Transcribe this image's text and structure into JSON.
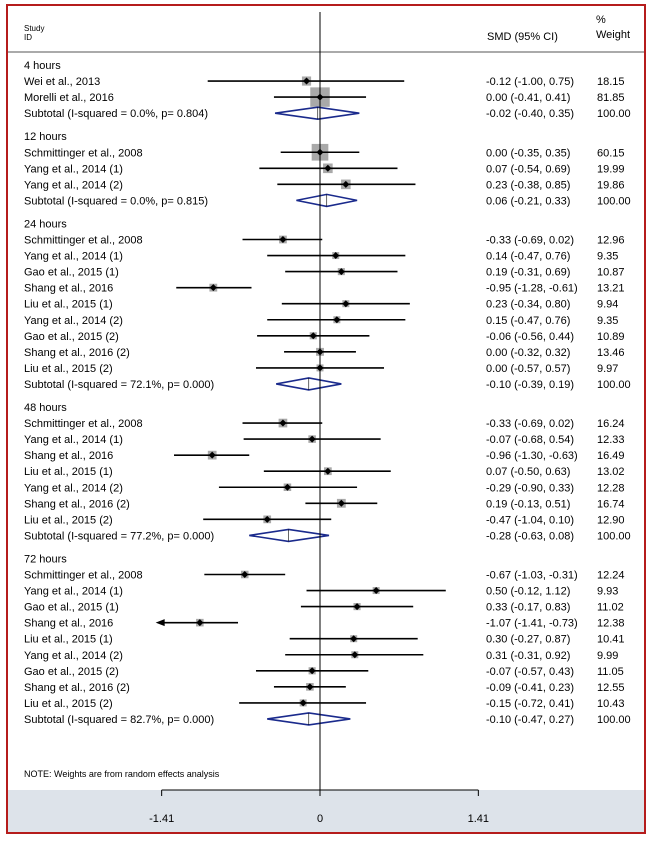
{
  "header": {
    "study_line1": "Study",
    "study_line2": "ID",
    "effect_label": "SMD (95% CI)",
    "weight_line1": "%",
    "weight_line2": "Weight"
  },
  "note": "NOTE: Weights are from random effects analysis",
  "colors": {
    "frame": "#b51c1c",
    "diamond": "#1a2a8c",
    "box": "#a9a9a9",
    "axis_band": "#dde3ea"
  },
  "chart_data": {
    "type": "forest",
    "x_ticks": [
      {
        "value": -1.41,
        "label": "-1.41"
      },
      {
        "value": 0,
        "label": "0"
      },
      {
        "value": 1.41,
        "label": "1.41"
      }
    ],
    "xlim": [
      -1.41,
      1.41
    ],
    "groups": [
      {
        "title": "4 hours",
        "studies": [
          {
            "label": "Wei et al., 2013",
            "smd": -0.12,
            "lo": -1.0,
            "hi": 0.75,
            "ci_text": "-0.12 (-1.00, 0.75)",
            "weight": 18.15,
            "weight_text": "18.15"
          },
          {
            "label": "Morelli et al., 2016",
            "smd": 0.0,
            "lo": -0.41,
            "hi": 0.41,
            "ci_text": "0.00 (-0.41, 0.41)",
            "weight": 81.85,
            "weight_text": "81.85"
          }
        ],
        "subtotal": {
          "label": "Subtotal (I-squared = 0.0%, p= 0.804)",
          "smd": -0.02,
          "lo": -0.4,
          "hi": 0.35,
          "ci_text": "-0.02 (-0.40, 0.35)",
          "weight_text": "100.00"
        }
      },
      {
        "title": "12 hours",
        "studies": [
          {
            "label": "Schmittinger et al., 2008",
            "smd": 0.0,
            "lo": -0.35,
            "hi": 0.35,
            "ci_text": "0.00 (-0.35, 0.35)",
            "weight": 60.15,
            "weight_text": "60.15"
          },
          {
            "label": "Yang et al., 2014 (1)",
            "smd": 0.07,
            "lo": -0.54,
            "hi": 0.69,
            "ci_text": "0.07 (-0.54, 0.69)",
            "weight": 19.99,
            "weight_text": "19.99"
          },
          {
            "label": "Yang et al., 2014 (2)",
            "smd": 0.23,
            "lo": -0.38,
            "hi": 0.85,
            "ci_text": "0.23 (-0.38, 0.85)",
            "weight": 19.86,
            "weight_text": "19.86"
          }
        ],
        "subtotal": {
          "label": "Subtotal (I-squared = 0.0%, p= 0.815)",
          "smd": 0.06,
          "lo": -0.21,
          "hi": 0.33,
          "ci_text": "0.06 (-0.21, 0.33)",
          "weight_text": "100.00"
        }
      },
      {
        "title": "24 hours",
        "studies": [
          {
            "label": "Schmittinger et al., 2008",
            "smd": -0.33,
            "lo": -0.69,
            "hi": 0.02,
            "ci_text": "-0.33 (-0.69, 0.02)",
            "weight": 12.96,
            "weight_text": "12.96"
          },
          {
            "label": "Yang et al., 2014 (1)",
            "smd": 0.14,
            "lo": -0.47,
            "hi": 0.76,
            "ci_text": "0.14 (-0.47, 0.76)",
            "weight": 9.35,
            "weight_text": "9.35"
          },
          {
            "label": "Gao et al., 2015 (1)",
            "smd": 0.19,
            "lo": -0.31,
            "hi": 0.69,
            "ci_text": "0.19 (-0.31, 0.69)",
            "weight": 10.87,
            "weight_text": "10.87"
          },
          {
            "label": "Shang et al., 2016",
            "smd": -0.95,
            "lo": -1.28,
            "hi": -0.61,
            "ci_text": "-0.95 (-1.28, -0.61)",
            "weight": 13.21,
            "weight_text": "13.21"
          },
          {
            "label": "Liu et al., 2015 (1)",
            "smd": 0.23,
            "lo": -0.34,
            "hi": 0.8,
            "ci_text": "0.23 (-0.34, 0.80)",
            "weight": 9.94,
            "weight_text": "9.94"
          },
          {
            "label": "Yang et al., 2014 (2)",
            "smd": 0.15,
            "lo": -0.47,
            "hi": 0.76,
            "ci_text": "0.15 (-0.47, 0.76)",
            "weight": 9.35,
            "weight_text": "9.35"
          },
          {
            "label": "Gao et al., 2015 (2)",
            "smd": -0.06,
            "lo": -0.56,
            "hi": 0.44,
            "ci_text": "-0.06 (-0.56, 0.44)",
            "weight": 10.89,
            "weight_text": "10.89"
          },
          {
            "label": "Shang et al., 2016 (2)",
            "smd": 0.0,
            "lo": -0.32,
            "hi": 0.32,
            "ci_text": "0.00 (-0.32, 0.32)",
            "weight": 13.46,
            "weight_text": "13.46"
          },
          {
            "label": "Liu et al., 2015 (2)",
            "smd": 0.0,
            "lo": -0.57,
            "hi": 0.57,
            "ci_text": "0.00 (-0.57, 0.57)",
            "weight": 9.97,
            "weight_text": "9.97"
          }
        ],
        "subtotal": {
          "label": "Subtotal (I-squared = 72.1%, p= 0.000)",
          "smd": -0.1,
          "lo": -0.39,
          "hi": 0.19,
          "ci_text": "-0.10 (-0.39, 0.19)",
          "weight_text": "100.00"
        }
      },
      {
        "title": "48 hours",
        "studies": [
          {
            "label": "Schmittinger et al., 2008",
            "smd": -0.33,
            "lo": -0.69,
            "hi": 0.02,
            "ci_text": "-0.33 (-0.69, 0.02)",
            "weight": 16.24,
            "weight_text": "16.24"
          },
          {
            "label": "Yang et al., 2014 (1)",
            "smd": -0.07,
            "lo": -0.68,
            "hi": 0.54,
            "ci_text": "-0.07 (-0.68, 0.54)",
            "weight": 12.33,
            "weight_text": "12.33"
          },
          {
            "label": "Shang et al., 2016",
            "smd": -0.96,
            "lo": -1.3,
            "hi": -0.63,
            "ci_text": "-0.96 (-1.30, -0.63)",
            "weight": 16.49,
            "weight_text": "16.49"
          },
          {
            "label": "Liu et al., 2015 (1)",
            "smd": 0.07,
            "lo": -0.5,
            "hi": 0.63,
            "ci_text": "0.07 (-0.50, 0.63)",
            "weight": 13.02,
            "weight_text": "13.02"
          },
          {
            "label": "Yang et al., 2014 (2)",
            "smd": -0.29,
            "lo": -0.9,
            "hi": 0.33,
            "ci_text": "-0.29 (-0.90, 0.33)",
            "weight": 12.28,
            "weight_text": "12.28"
          },
          {
            "label": "Shang et al., 2016 (2)",
            "smd": 0.19,
            "lo": -0.13,
            "hi": 0.51,
            "ci_text": "0.19 (-0.13, 0.51)",
            "weight": 16.74,
            "weight_text": "16.74"
          },
          {
            "label": "Liu et al., 2015 (2)",
            "smd": -0.47,
            "lo": -1.04,
            "hi": 0.1,
            "ci_text": "-0.47 (-1.04, 0.10)",
            "weight": 12.9,
            "weight_text": "12.90"
          }
        ],
        "subtotal": {
          "label": "Subtotal (I-squared = 77.2%, p= 0.000)",
          "smd": -0.28,
          "lo": -0.63,
          "hi": 0.08,
          "ci_text": "-0.28 (-0.63, 0.08)",
          "weight_text": "100.00"
        }
      },
      {
        "title": "72 hours",
        "studies": [
          {
            "label": "Schmittinger et al., 2008",
            "smd": -0.67,
            "lo": -1.03,
            "hi": -0.31,
            "ci_text": "-0.67 (-1.03, -0.31)",
            "weight": 12.24,
            "weight_text": "12.24"
          },
          {
            "label": "Yang et al., 2014 (1)",
            "smd": 0.5,
            "lo": -0.12,
            "hi": 1.12,
            "ci_text": "0.50 (-0.12, 1.12)",
            "weight": 9.93,
            "weight_text": "9.93"
          },
          {
            "label": "Gao et al., 2015 (1)",
            "smd": 0.33,
            "lo": -0.17,
            "hi": 0.83,
            "ci_text": "0.33 (-0.17, 0.83)",
            "weight": 11.02,
            "weight_text": "11.02"
          },
          {
            "label": "Shang et al., 2016",
            "smd": -1.07,
            "lo": -1.41,
            "hi": -0.73,
            "ci_text": "-1.07 (-1.41, -0.73)",
            "weight": 12.38,
            "weight_text": "12.38",
            "arrow_left": true
          },
          {
            "label": "Liu et al., 2015 (1)",
            "smd": 0.3,
            "lo": -0.27,
            "hi": 0.87,
            "ci_text": "0.30 (-0.27, 0.87)",
            "weight": 10.41,
            "weight_text": "10.41"
          },
          {
            "label": "Yang et al., 2014 (2)",
            "smd": 0.31,
            "lo": -0.31,
            "hi": 0.92,
            "ci_text": "0.31 (-0.31, 0.92)",
            "weight": 9.99,
            "weight_text": "9.99"
          },
          {
            "label": "Gao et al., 2015 (2)",
            "smd": -0.07,
            "lo": -0.57,
            "hi": 0.43,
            "ci_text": "-0.07 (-0.57, 0.43)",
            "weight": 11.05,
            "weight_text": "11.05"
          },
          {
            "label": "Shang et al., 2016 (2)",
            "smd": -0.09,
            "lo": -0.41,
            "hi": 0.23,
            "ci_text": "-0.09 (-0.41, 0.23)",
            "weight": 12.55,
            "weight_text": "12.55"
          },
          {
            "label": "Liu et al., 2015 (2)",
            "smd": -0.15,
            "lo": -0.72,
            "hi": 0.41,
            "ci_text": "-0.15 (-0.72, 0.41)",
            "weight": 10.43,
            "weight_text": "10.43"
          }
        ],
        "subtotal": {
          "label": "Subtotal (I-squared = 82.7%, p= 0.000)",
          "smd": -0.1,
          "lo": -0.47,
          "hi": 0.27,
          "ci_text": "-0.10 (-0.47, 0.27)",
          "weight_text": "100.00"
        }
      }
    ]
  }
}
